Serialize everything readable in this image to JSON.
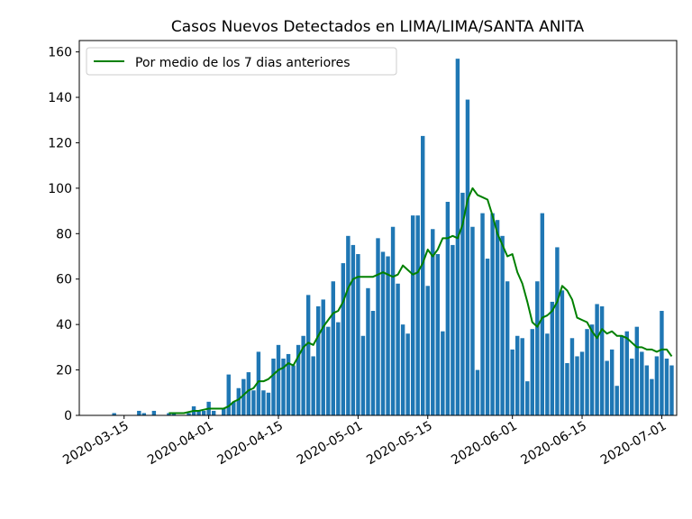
{
  "chart_data": {
    "type": "bar",
    "title": "Casos Nuevos Detectados en LIMA/LIMA/SANTA ANITA",
    "xlabel": "",
    "ylabel": "",
    "ylim": [
      0,
      165
    ],
    "xlim": [
      "2020-03-06",
      "2020-07-04"
    ],
    "yticks": [
      0,
      20,
      40,
      60,
      80,
      100,
      120,
      140,
      160
    ],
    "xticks": [
      "2020-03-15",
      "2020-04-01",
      "2020-04-15",
      "2020-05-01",
      "2020-05-15",
      "2020-06-01",
      "2020-06-15",
      "2020-07-01"
    ],
    "bar_color": "#1f77b4",
    "line_color": "#008000",
    "legend_location": "top-left",
    "dates": [
      "2020-03-13",
      "2020-03-14",
      "2020-03-15",
      "2020-03-16",
      "2020-03-17",
      "2020-03-18",
      "2020-03-19",
      "2020-03-20",
      "2020-03-21",
      "2020-03-22",
      "2020-03-23",
      "2020-03-24",
      "2020-03-25",
      "2020-03-26",
      "2020-03-27",
      "2020-03-28",
      "2020-03-29",
      "2020-03-30",
      "2020-03-31",
      "2020-04-01",
      "2020-04-02",
      "2020-04-03",
      "2020-04-04",
      "2020-04-05",
      "2020-04-06",
      "2020-04-07",
      "2020-04-08",
      "2020-04-09",
      "2020-04-10",
      "2020-04-11",
      "2020-04-12",
      "2020-04-13",
      "2020-04-14",
      "2020-04-15",
      "2020-04-16",
      "2020-04-17",
      "2020-04-18",
      "2020-04-19",
      "2020-04-20",
      "2020-04-21",
      "2020-04-22",
      "2020-04-23",
      "2020-04-24",
      "2020-04-25",
      "2020-04-26",
      "2020-04-27",
      "2020-04-28",
      "2020-04-29",
      "2020-04-30",
      "2020-05-01",
      "2020-05-02",
      "2020-05-03",
      "2020-05-04",
      "2020-05-05",
      "2020-05-06",
      "2020-05-07",
      "2020-05-08",
      "2020-05-09",
      "2020-05-10",
      "2020-05-11",
      "2020-05-12",
      "2020-05-13",
      "2020-05-14",
      "2020-05-15",
      "2020-05-16",
      "2020-05-17",
      "2020-05-18",
      "2020-05-19",
      "2020-05-20",
      "2020-05-21",
      "2020-05-22",
      "2020-05-23",
      "2020-05-24",
      "2020-05-25",
      "2020-05-26",
      "2020-05-27",
      "2020-05-28",
      "2020-05-29",
      "2020-05-30",
      "2020-05-31",
      "2020-06-01",
      "2020-06-02",
      "2020-06-03",
      "2020-06-04",
      "2020-06-05",
      "2020-06-06",
      "2020-06-07",
      "2020-06-08",
      "2020-06-09",
      "2020-06-10",
      "2020-06-11",
      "2020-06-12",
      "2020-06-13",
      "2020-06-14",
      "2020-06-15",
      "2020-06-16",
      "2020-06-17",
      "2020-06-18",
      "2020-06-19",
      "2020-06-20",
      "2020-06-21",
      "2020-06-22",
      "2020-06-23",
      "2020-06-24",
      "2020-06-25",
      "2020-06-26",
      "2020-06-27",
      "2020-06-28",
      "2020-06-29",
      "2020-06-30",
      "2020-07-01",
      "2020-07-02",
      "2020-07-03"
    ],
    "series": [
      {
        "type": "bar",
        "values": [
          1,
          0,
          0,
          0,
          0,
          2,
          1,
          0,
          2,
          0,
          0,
          1,
          1,
          0,
          0,
          1,
          4,
          2,
          2,
          6,
          2,
          0,
          3,
          18,
          6,
          12,
          16,
          19,
          11,
          28,
          11,
          10,
          25,
          31,
          25,
          27,
          22,
          31,
          35,
          53,
          26,
          48,
          51,
          39,
          59,
          41,
          67,
          79,
          75,
          71,
          35,
          56,
          46,
          78,
          72,
          70,
          83,
          58,
          40,
          36,
          88,
          88,
          123,
          57,
          82,
          71,
          37,
          94,
          75,
          157,
          98,
          139,
          83,
          20,
          89,
          69,
          89,
          86,
          79,
          59,
          29,
          35,
          34,
          15,
          38,
          59,
          89,
          36,
          50,
          74,
          55,
          23,
          34,
          26,
          28,
          38,
          40,
          49,
          48,
          24,
          29,
          13,
          35,
          37,
          25,
          39,
          28,
          22,
          16,
          26,
          46,
          25,
          22
        ]
      },
      {
        "type": "line",
        "name": "Por medio de los 7 dias anteriores",
        "values": [
          null,
          null,
          null,
          null,
          null,
          null,
          null,
          null,
          null,
          null,
          null,
          1,
          1,
          1,
          1,
          1.5,
          2,
          2,
          2.5,
          3,
          3,
          3,
          3,
          4,
          6,
          7,
          9,
          11,
          12,
          15,
          15,
          16,
          18,
          20,
          21,
          23,
          22,
          26,
          30,
          32,
          31,
          35,
          39,
          42,
          45,
          46,
          50,
          56,
          60,
          61,
          61,
          61,
          61,
          62,
          63,
          62,
          61,
          62,
          66,
          64,
          62,
          63,
          67,
          73,
          70,
          73,
          78,
          78,
          79,
          78,
          84,
          95,
          100,
          97,
          96,
          95,
          88,
          80,
          75,
          70,
          71,
          63,
          58,
          50,
          41,
          39,
          43,
          44,
          46,
          50,
          57,
          55,
          51,
          43,
          42,
          41,
          37,
          34,
          38,
          36,
          37,
          35,
          35,
          34,
          32,
          30,
          30,
          29,
          29,
          28,
          29,
          29,
          26
        ]
      }
    ]
  }
}
